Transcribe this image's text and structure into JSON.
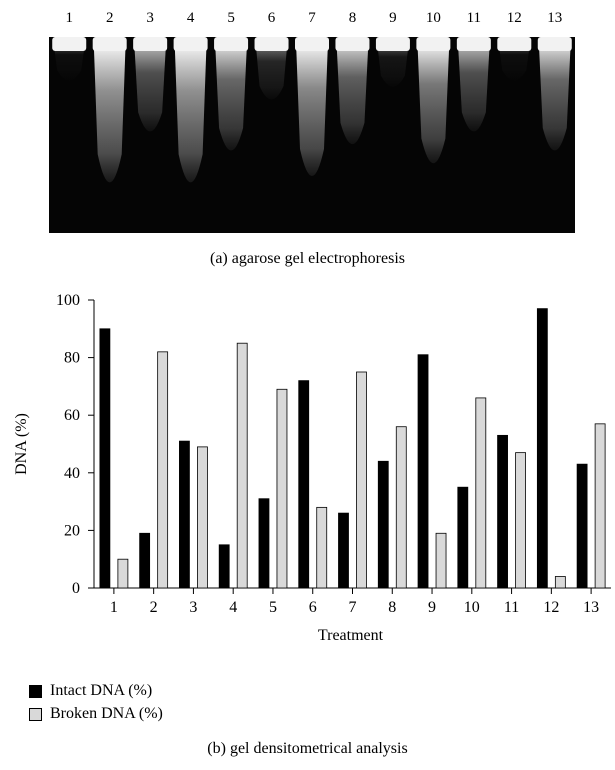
{
  "panel_a": {
    "lane_labels": [
      "1",
      "2",
      "3",
      "4",
      "5",
      "6",
      "7",
      "8",
      "9",
      "10",
      "11",
      "12",
      "13"
    ],
    "smear_intensity": [
      0.05,
      0.85,
      0.45,
      0.85,
      0.6,
      0.2,
      0.8,
      0.55,
      0.1,
      0.7,
      0.45,
      0.05,
      0.6
    ],
    "caption": "(a)  agarose gel electrophoresis"
  },
  "panel_b": {
    "caption": "(b)  gel densitometrical analysis"
  },
  "legend": {
    "intact_label": "Intact DNA (%)",
    "broken_label": "Broken DNA (%)"
  },
  "colors": {
    "intact": "#000000",
    "broken": "#d9d9d9",
    "gel_background": "#050505"
  },
  "chart_data": {
    "type": "bar",
    "categories": [
      "1",
      "2",
      "3",
      "4",
      "5",
      "6",
      "7",
      "8",
      "9",
      "10",
      "11",
      "12",
      "13"
    ],
    "series": [
      {
        "name": "Intact DNA (%)",
        "values": [
          90,
          19,
          51,
          15,
          31,
          72,
          26,
          44,
          81,
          35,
          53,
          97,
          43
        ]
      },
      {
        "name": "Broken DNA (%)",
        "values": [
          10,
          82,
          49,
          85,
          69,
          28,
          75,
          56,
          19,
          66,
          47,
          4,
          57
        ]
      }
    ],
    "xlabel": "Treatment",
    "ylabel": "DNA (%)",
    "ylim": [
      0,
      100
    ],
    "yticks": [
      0,
      20,
      40,
      60,
      80,
      100
    ],
    "grid": false,
    "legend_position": "bottom-left"
  }
}
